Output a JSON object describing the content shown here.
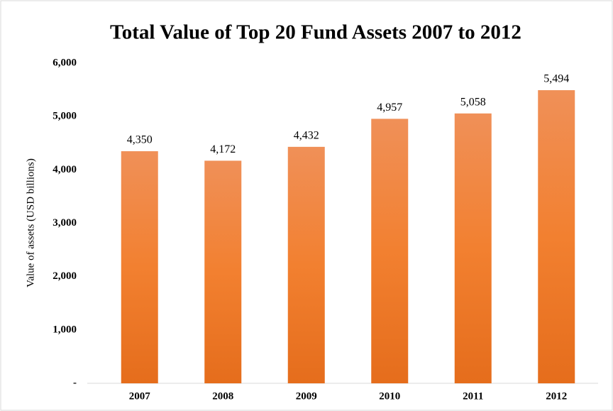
{
  "chart_data": {
    "type": "bar",
    "title": "Total Value of Top 20 Fund Assets 2007 to 2012",
    "y_label": "Value of assets (USD billions)",
    "categories": [
      "2007",
      "2008",
      "2009",
      "2010",
      "2011",
      "2012"
    ],
    "values": [
      4350,
      4172,
      4432,
      4957,
      5058,
      5494
    ],
    "value_labels": [
      "4,350",
      "4,172",
      "4,432",
      "4,957",
      "5,058",
      "5,494"
    ],
    "color": "#ed7d31",
    "ylim": [
      0,
      6000
    ],
    "yticks": [
      {
        "value": 0,
        "label": "-"
      },
      {
        "value": 1000,
        "label": "1,000"
      },
      {
        "value": 2000,
        "label": "2,000"
      },
      {
        "value": 3000,
        "label": "3,000"
      },
      {
        "value": 4000,
        "label": "4,000"
      },
      {
        "value": 5000,
        "label": "5,000"
      },
      {
        "value": 6000,
        "label": "6,000"
      }
    ],
    "grid": false
  }
}
